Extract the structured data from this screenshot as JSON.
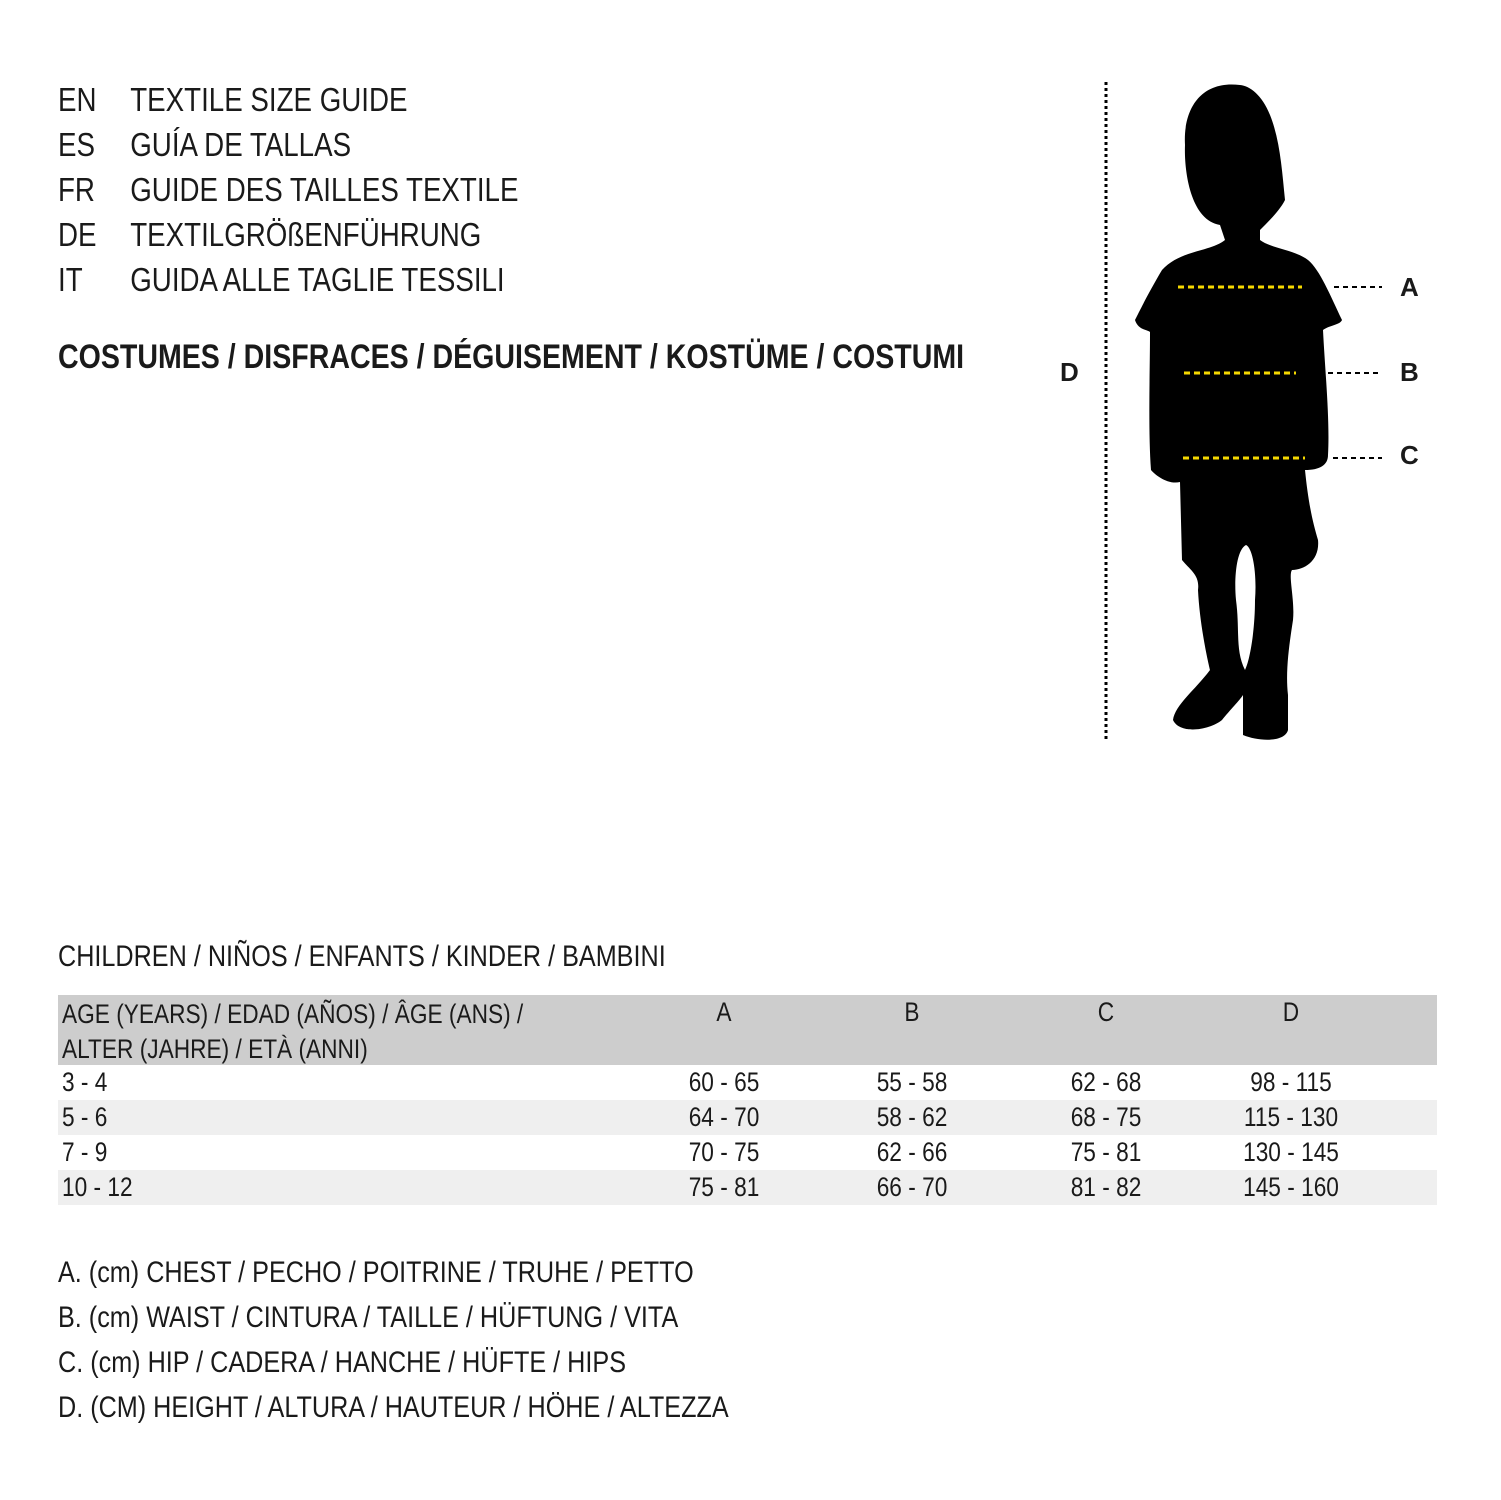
{
  "titles": [
    {
      "code": "EN",
      "text": "TEXTILE SIZE GUIDE"
    },
    {
      "code": "ES",
      "text": "GUÍA DE TALLAS"
    },
    {
      "code": "FR",
      "text": "GUIDE DES TAILLES TEXTILE"
    },
    {
      "code": "DE",
      "text": "TEXTILGRÖßENFÜHRUNG"
    },
    {
      "code": "IT",
      "text": "GUIDA ALLE TAGLIE TESSILI"
    }
  ],
  "category": "COSTUMES / DISFRACES / DÉGUISEMENT / KOSTÜME / COSTUMI",
  "figure": {
    "labels": {
      "a": "A",
      "b": "B",
      "c": "C",
      "d": "D"
    },
    "measure_line_color": "#f5d800",
    "silhouette": "child-silhouette"
  },
  "group": "CHILDREN / NIÑOS / ENFANTS / KINDER / BAMBINI",
  "table": {
    "headers": [
      "AGE (YEARS) / EDAD (AÑOS) / ÂGE (ANS) /",
      "ALTER (JAHRE) / ETÀ (ANNI)",
      "A",
      "B",
      "C",
      "D"
    ],
    "rows": [
      [
        "3 - 4",
        "60 - 65",
        "55 - 58",
        "62 - 68",
        "98 - 115"
      ],
      [
        "5 - 6",
        "64 - 70",
        "58 - 62",
        "68 - 75",
        "115 - 130"
      ],
      [
        "7 - 9",
        "70 - 75",
        "62 - 66",
        "75 - 81",
        "130 - 145"
      ],
      [
        "10 - 12",
        "75 - 81",
        "66 - 70",
        "81 - 82",
        "145 - 160"
      ]
    ]
  },
  "legend": [
    "A. (cm) CHEST / PECHO / POITRINE / TRUHE / PETTO",
    "B. (cm) WAIST / CINTURA / TAILLE / HÜFTUNG / VITA",
    "C. (cm) HIP / CADERA / HANCHE / HÜFTE / HIPS",
    "D. (CM) HEIGHT / ALTURA / HAUTEUR / HÖHE / ALTEZZA"
  ]
}
